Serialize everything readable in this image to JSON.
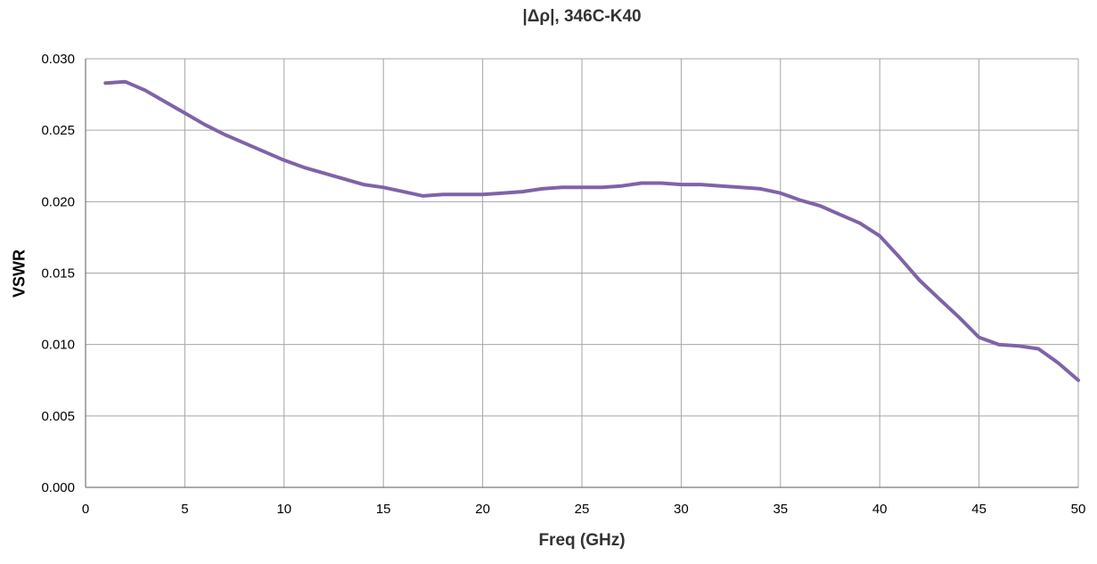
{
  "chart_data": {
    "type": "line",
    "title": "|Δρ|, 346C-K40",
    "xlabel": "Freq (GHz)",
    "ylabel": "VSWR",
    "xlim": [
      0,
      50
    ],
    "ylim": [
      0,
      0.03
    ],
    "x_ticks": [
      "0",
      "5",
      "10",
      "15",
      "20",
      "25",
      "30",
      "35",
      "40",
      "45",
      "50"
    ],
    "y_ticks": [
      "0.000",
      "0.005",
      "0.010",
      "0.015",
      "0.020",
      "0.025",
      "0.030"
    ],
    "grid": true,
    "legend": "none",
    "line_color": "#7f63a8",
    "series": [
      {
        "x": [
          1,
          2,
          3,
          4,
          5,
          6,
          7,
          8,
          9,
          10,
          11,
          12,
          13,
          14,
          15,
          16,
          17,
          18,
          19,
          20,
          21,
          22,
          23,
          24,
          25,
          26,
          27,
          28,
          29,
          30,
          31,
          32,
          33,
          34,
          35,
          36,
          37,
          38,
          39,
          40,
          41,
          42,
          43,
          44,
          45,
          46,
          47,
          48,
          49,
          50
        ],
        "values": [
          0.0283,
          0.0284,
          0.0278,
          0.027,
          0.0262,
          0.0254,
          0.0247,
          0.0241,
          0.0235,
          0.0229,
          0.0224,
          0.022,
          0.0216,
          0.0212,
          0.021,
          0.0207,
          0.0204,
          0.0205,
          0.0205,
          0.0205,
          0.0206,
          0.0207,
          0.0209,
          0.021,
          0.021,
          0.021,
          0.0211,
          0.0213,
          0.0213,
          0.0212,
          0.0212,
          0.0211,
          0.021,
          0.0209,
          0.0206,
          0.0201,
          0.0197,
          0.0191,
          0.0185,
          0.0176,
          0.0161,
          0.0145,
          0.0132,
          0.0119,
          0.0105,
          0.01,
          0.0099,
          0.0097,
          0.0087,
          0.0075
        ]
      }
    ]
  }
}
